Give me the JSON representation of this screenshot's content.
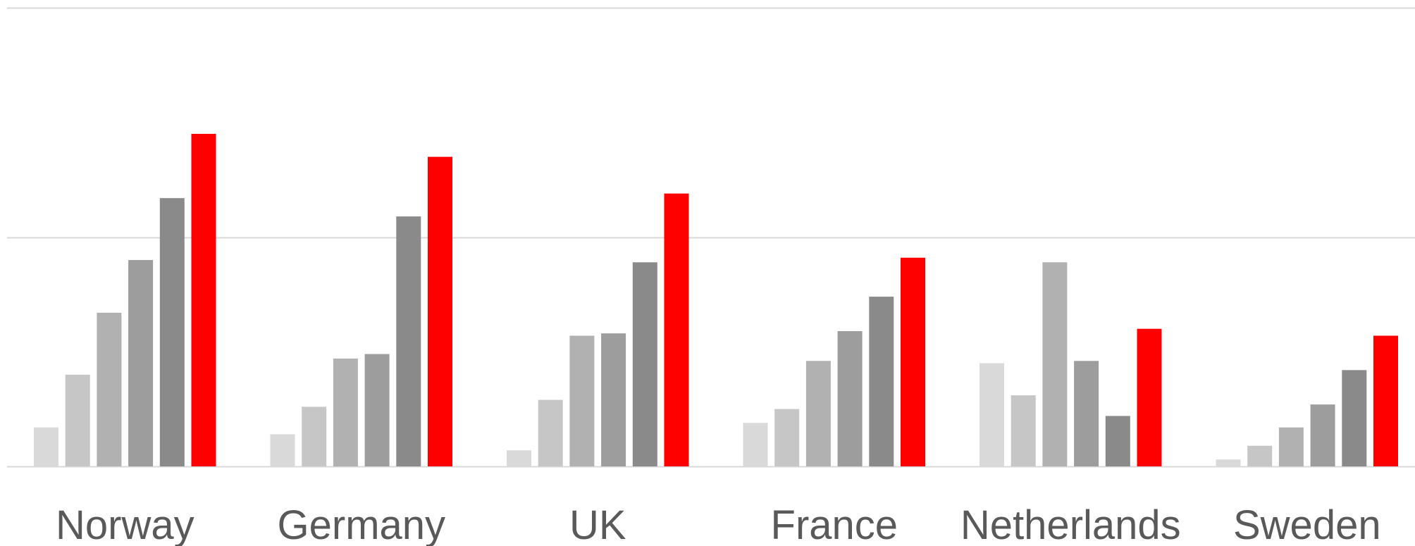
{
  "chart_data": {
    "type": "bar",
    "title": "",
    "xlabel": "",
    "ylabel": "",
    "ylim": [
      0,
      2
    ],
    "grid": true,
    "gridlines": [
      0,
      1,
      2
    ],
    "categories": [
      "Norway",
      "Germany",
      "UK",
      "France",
      "Netherlands",
      "Sweden"
    ],
    "series": [
      {
        "color": "#d9d9d9",
        "values": [
          0.17,
          0.14,
          0.07,
          0.19,
          0.45,
          0.03
        ]
      },
      {
        "color": "#c6c6c6",
        "values": [
          0.4,
          0.26,
          0.29,
          0.25,
          0.31,
          0.09
        ]
      },
      {
        "color": "#b1b1b1",
        "values": [
          0.67,
          0.47,
          0.57,
          0.46,
          0.89,
          0.17
        ]
      },
      {
        "color": "#9d9d9d",
        "values": [
          0.9,
          0.49,
          0.58,
          0.59,
          0.46,
          0.27
        ]
      },
      {
        "color": "#8a8a8a",
        "values": [
          1.17,
          1.09,
          0.89,
          0.74,
          0.22,
          0.42
        ]
      },
      {
        "color": "#ff0000",
        "values": [
          1.45,
          1.35,
          1.19,
          0.91,
          0.6,
          0.57
        ]
      }
    ]
  }
}
